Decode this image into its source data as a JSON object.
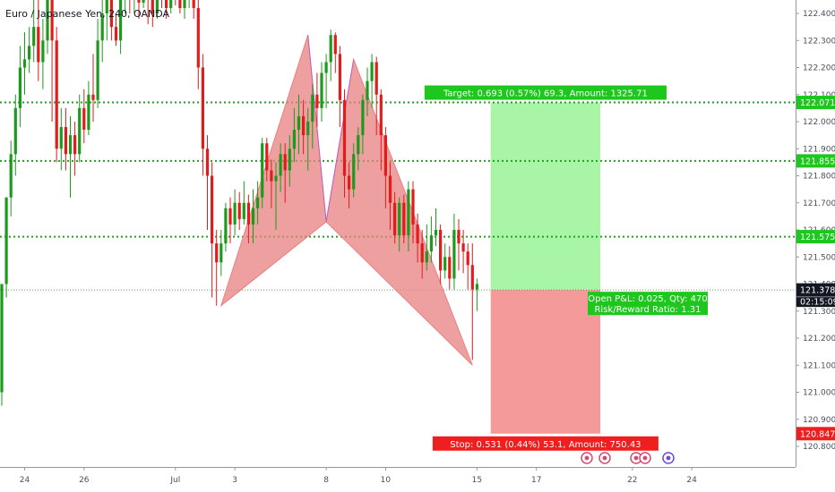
{
  "title": "Euro / Japanese Yen, 240, OANDA",
  "colors": {
    "up": "#1d9a1d",
    "down": "#e01c1c",
    "pattern_fill": "#e88080",
    "pattern_stroke": "#c060c0",
    "target_zone": "#a8f5a8",
    "stop_zone": "#f59a9a",
    "dotted_line": "#22a022",
    "badge_green": "#1ec71e",
    "badge_red": "#f01f1f"
  },
  "chart_data": {
    "type": "candlestick",
    "title": "Euro / Japanese Yen, 240, OANDA",
    "ylim": [
      120.75,
      122.48
    ],
    "y_ticks": [
      122.4,
      122.3,
      122.2,
      122.1,
      122.0,
      121.9,
      121.8,
      121.7,
      121.6,
      121.5,
      121.4,
      121.3,
      121.2,
      121.1,
      121.0,
      120.9,
      120.8
    ],
    "x_ticks": [
      {
        "label": "24",
        "index": 5
      },
      {
        "label": "26",
        "index": 18
      },
      {
        "label": "Jul",
        "index": 38
      },
      {
        "label": "3",
        "index": 51
      },
      {
        "label": "8",
        "index": 71
      },
      {
        "label": "10",
        "index": 84
      },
      {
        "label": "15",
        "index": 104
      },
      {
        "label": "17",
        "index": 117
      },
      {
        "label": "22",
        "index": 138
      },
      {
        "label": "24",
        "index": 151
      }
    ],
    "candles": [
      [
        121.0,
        121.4,
        121.4,
        120.95
      ],
      [
        121.4,
        121.72,
        121.72,
        121.35
      ],
      [
        121.72,
        121.88,
        121.93,
        121.65
      ],
      [
        121.88,
        122.05,
        122.1,
        121.8
      ],
      [
        122.05,
        122.2,
        122.28,
        121.98
      ],
      [
        122.2,
        122.23,
        122.33,
        122.1
      ],
      [
        122.23,
        122.28,
        122.35,
        122.18
      ],
      [
        122.28,
        122.35,
        122.45,
        122.22
      ],
      [
        122.35,
        122.22,
        122.48,
        122.15
      ],
      [
        122.22,
        122.3,
        122.38,
        122.12
      ],
      [
        122.3,
        122.45,
        122.48,
        122.25
      ],
      [
        122.45,
        122.3,
        122.48,
        122.0
      ],
      [
        122.3,
        121.9,
        122.35,
        121.85
      ],
      [
        121.9,
        121.98,
        122.05,
        121.82
      ],
      [
        121.98,
        121.88,
        122.05,
        121.82
      ],
      [
        121.88,
        121.95,
        122.02,
        121.72
      ],
      [
        121.95,
        121.88,
        122.0,
        121.8
      ],
      [
        121.88,
        122.05,
        122.1,
        121.85
      ],
      [
        122.05,
        121.97,
        122.12,
        121.92
      ],
      [
        121.97,
        122.1,
        122.15,
        121.95
      ],
      [
        122.1,
        122.08,
        122.25,
        122.0
      ],
      [
        122.08,
        122.3,
        122.38,
        122.05
      ],
      [
        122.3,
        122.4,
        122.48,
        122.22
      ],
      [
        122.4,
        122.45,
        122.48,
        122.3
      ],
      [
        122.45,
        122.35,
        122.48,
        122.3
      ],
      [
        122.35,
        122.3,
        122.4,
        122.28
      ],
      [
        122.3,
        122.45,
        122.48,
        122.25
      ],
      [
        122.45,
        122.48,
        122.48,
        122.4
      ],
      [
        122.48,
        122.45,
        122.48,
        122.4
      ],
      [
        122.45,
        122.48,
        122.48,
        122.4
      ],
      [
        122.48,
        122.44,
        122.48,
        122.38
      ],
      [
        122.44,
        122.48,
        122.48,
        122.42
      ],
      [
        122.48,
        122.45,
        122.48,
        122.36
      ],
      [
        122.45,
        122.4,
        122.48,
        122.35
      ],
      [
        122.4,
        122.48,
        122.48,
        122.38
      ],
      [
        122.48,
        122.46,
        122.48,
        122.42
      ],
      [
        122.46,
        122.42,
        122.48,
        122.38
      ],
      [
        122.42,
        122.48,
        122.48,
        122.4
      ],
      [
        122.48,
        122.46,
        122.48,
        122.43
      ],
      [
        122.46,
        122.42,
        122.48,
        122.4
      ],
      [
        122.42,
        122.45,
        122.48,
        122.38
      ],
      [
        122.45,
        122.48,
        122.48,
        122.42
      ],
      [
        122.48,
        122.42,
        122.48,
        122.38
      ],
      [
        122.42,
        122.2,
        122.45,
        122.12
      ],
      [
        122.2,
        121.9,
        122.25,
        121.8
      ],
      [
        121.9,
        121.8,
        121.95,
        121.6
      ],
      [
        121.8,
        121.55,
        121.85,
        121.35
      ],
      [
        121.55,
        121.48,
        121.6,
        121.32
      ],
      [
        121.48,
        121.55,
        121.6,
        121.43
      ],
      [
        121.55,
        121.68,
        121.7,
        121.52
      ],
      [
        121.68,
        121.62,
        121.72,
        121.55
      ],
      [
        121.62,
        121.7,
        121.75,
        121.58
      ],
      [
        121.7,
        121.64,
        121.74,
        121.6
      ],
      [
        121.64,
        121.7,
        121.78,
        121.62
      ],
      [
        121.7,
        121.62,
        121.73,
        121.55
      ],
      [
        121.62,
        121.68,
        121.75,
        121.55
      ],
      [
        121.68,
        121.72,
        121.78,
        121.62
      ],
      [
        121.72,
        121.92,
        121.94,
        121.68
      ],
      [
        121.92,
        121.82,
        121.94,
        121.78
      ],
      [
        121.82,
        121.78,
        121.86,
        121.68
      ],
      [
        121.78,
        121.8,
        121.85,
        121.6
      ],
      [
        121.8,
        121.88,
        121.92,
        121.74
      ],
      [
        121.88,
        121.82,
        121.92,
        121.7
      ],
      [
        121.82,
        121.9,
        121.95,
        121.76
      ],
      [
        121.9,
        121.97,
        122.05,
        121.85
      ],
      [
        121.97,
        122.02,
        122.1,
        121.88
      ],
      [
        122.02,
        121.95,
        122.08,
        121.88
      ],
      [
        121.95,
        122.0,
        122.05,
        121.82
      ],
      [
        122.0,
        122.1,
        122.14,
        121.9
      ],
      [
        122.1,
        122.05,
        122.18,
        121.98
      ],
      [
        122.05,
        122.18,
        122.22,
        122.0
      ],
      [
        122.18,
        122.22,
        122.25,
        122.05
      ],
      [
        122.22,
        122.32,
        122.34,
        122.15
      ],
      [
        122.32,
        122.25,
        122.33,
        122.18
      ],
      [
        122.25,
        122.08,
        122.28,
        121.98
      ],
      [
        122.08,
        121.8,
        122.12,
        121.72
      ],
      [
        121.8,
        121.75,
        121.85,
        121.68
      ],
      [
        121.75,
        121.88,
        121.92,
        121.72
      ],
      [
        121.88,
        121.95,
        121.98,
        121.82
      ],
      [
        121.95,
        122.08,
        122.1,
        121.88
      ],
      [
        122.08,
        122.15,
        122.2,
        122.02
      ],
      [
        122.15,
        122.22,
        122.25,
        122.05
      ],
      [
        122.22,
        122.1,
        122.24,
        121.95
      ],
      [
        122.1,
        121.95,
        122.12,
        121.82
      ],
      [
        121.95,
        121.8,
        121.98,
        121.68
      ],
      [
        121.8,
        121.7,
        121.85,
        121.6
      ],
      [
        121.7,
        121.58,
        121.74,
        121.55
      ],
      [
        121.58,
        121.7,
        121.72,
        121.52
      ],
      [
        121.7,
        121.58,
        121.73,
        121.55
      ],
      [
        121.58,
        121.75,
        121.78,
        121.52
      ],
      [
        121.75,
        121.62,
        121.78,
        121.55
      ],
      [
        121.62,
        121.55,
        121.66,
        121.48
      ],
      [
        121.55,
        121.48,
        121.6,
        121.42
      ],
      [
        121.48,
        121.52,
        121.62,
        121.45
      ],
      [
        121.52,
        121.58,
        121.65,
        121.48
      ],
      [
        121.58,
        121.6,
        121.68,
        121.54
      ],
      [
        121.6,
        121.45,
        121.62,
        121.4
      ],
      [
        121.45,
        121.5,
        121.55,
        121.42
      ],
      [
        121.5,
        121.42,
        121.54,
        121.38
      ],
      [
        121.42,
        121.6,
        121.66,
        121.38
      ],
      [
        121.6,
        121.55,
        121.64,
        121.45
      ],
      [
        121.55,
        121.52,
        121.6,
        121.44
      ],
      [
        121.52,
        121.47,
        121.55,
        121.38
      ],
      [
        121.47,
        121.38,
        121.55,
        121.12
      ],
      [
        121.38,
        121.4,
        121.42,
        121.3
      ]
    ]
  },
  "harmonic_pattern": {
    "points": [
      {
        "index": 48,
        "price": 121.32
      },
      {
        "index": 67,
        "price": 122.32
      },
      {
        "index": 71,
        "price": 121.63
      },
      {
        "index": 77,
        "price": 122.23
      },
      {
        "index": 103,
        "price": 121.1
      }
    ]
  },
  "position": {
    "entry": 121.378,
    "target": 122.071,
    "stop": 120.847,
    "start_index": 107,
    "end_index": 131,
    "target_label": "Target: 0.693 (0.57%) 69.3, Amount: 1325.71",
    "stop_label": "Stop: 0.531 (0.44%) 53.1, Amount: 750.43",
    "pnl_line1": "Open P&L: 0.025, Qty: 470",
    "pnl_line2": "Risk/Reward Ratio: 1.31"
  },
  "horizontal_lines": [
    {
      "price": 122.071,
      "label": "122.071"
    },
    {
      "price": 121.855,
      "label": "121.855"
    },
    {
      "price": 121.575,
      "label": "121.575"
    }
  ],
  "price_badges": [
    {
      "price": 122.071,
      "label": "122.071",
      "kind": "green"
    },
    {
      "price": 121.855,
      "label": "121.855",
      "kind": "green"
    },
    {
      "price": 121.575,
      "label": "121.575",
      "kind": "green"
    },
    {
      "price": 121.378,
      "label": "121.378",
      "kind": "dark"
    },
    {
      "price": 120.847,
      "label": "120.847",
      "kind": "red"
    }
  ],
  "countdown_label": "02:15:09"
}
